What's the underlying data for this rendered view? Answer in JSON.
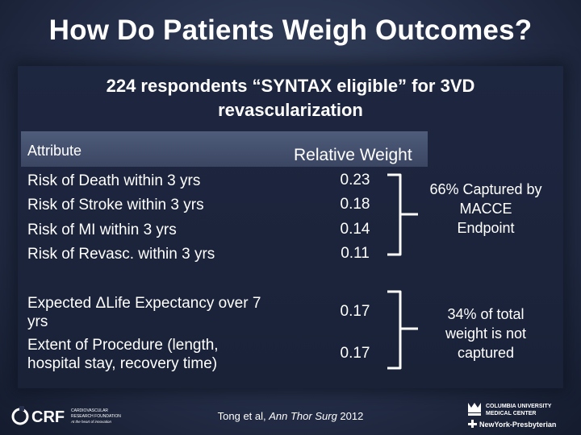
{
  "title": "How Do Patients Weigh Outcomes?",
  "subtitle": "224 respondents “SYNTAX eligible” for 3VD revascularization",
  "table": {
    "header": {
      "attribute": "Attribute",
      "weight": "Relative Weight"
    },
    "rows": [
      {
        "attribute": "Risk of Death within 3 yrs",
        "weight": "0.23"
      },
      {
        "attribute": "Risk of Stroke within 3 yrs",
        "weight": "0.18"
      },
      {
        "attribute": "Risk of MI within 3 yrs",
        "weight": "0.14"
      },
      {
        "attribute": "Risk of Revasc. within 3 yrs",
        "weight": "0.11"
      },
      {
        "attribute": "Expected ΔLife Expectancy over 7 yrs",
        "weight": "0.17"
      },
      {
        "attribute": "Extent of Procedure (length, hospital stay, recovery time)",
        "weight": "0.17"
      }
    ]
  },
  "notes": {
    "group1": "66% Captured by MACCE Endpoint",
    "group2": "34% of total weight is not captured"
  },
  "citation": {
    "prefix": "Tong et al, ",
    "journal": "Ann Thor Surg",
    "year": " 2012"
  },
  "logos": {
    "left": {
      "mark": "CRF",
      "line1": "CARDIOVASCULAR",
      "line2": "RESEARCH FOUNDATION",
      "line3": "At the heart of innovation"
    },
    "right": {
      "line1": "COLUMBIA UNIVERSITY",
      "line2": "MEDICAL CENTER",
      "line3": "NewYork-Presbyterian"
    }
  }
}
